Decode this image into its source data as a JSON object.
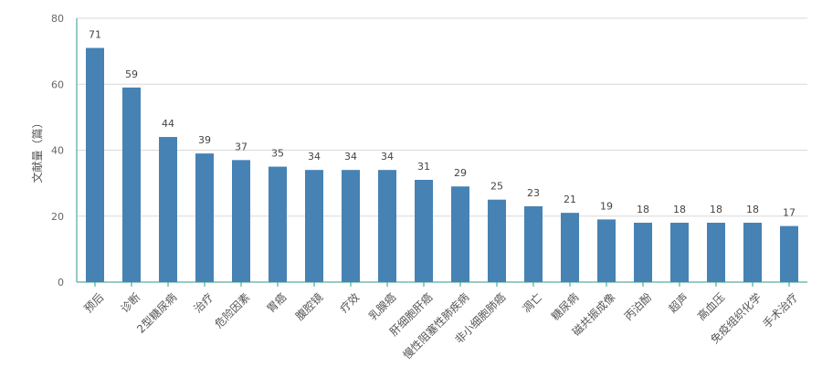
{
  "chart_data": {
    "type": "bar",
    "title": "",
    "xlabel": "",
    "ylabel": "文献量（篇）",
    "ylim": [
      0,
      80
    ],
    "yticks": [
      0,
      20,
      40,
      60,
      80
    ],
    "grid": true,
    "bar_color": "#4682b4",
    "axis_color": "#2e9a8a",
    "categories": [
      "预后",
      "诊断",
      "2型糖尿病",
      "治疗",
      "危险因素",
      "胃癌",
      "腹腔镜",
      "疗效",
      "乳腺癌",
      "肝细胞肝癌",
      "慢性阻塞性肺疾病",
      "非小细胞肺癌",
      "凋亡",
      "糖尿病",
      "磁共振成像",
      "丙泊酚",
      "超声",
      "高血压",
      "免疫组织化学",
      "手术治疗"
    ],
    "values": [
      71,
      59,
      44,
      39,
      37,
      35,
      34,
      34,
      34,
      31,
      29,
      25,
      23,
      21,
      19,
      18,
      18,
      18,
      18,
      17
    ],
    "data_labels": [
      "71",
      "59",
      "44",
      "39",
      "37",
      "35",
      "34",
      "34",
      "34",
      "31",
      "29",
      "25",
      "23",
      "21",
      "19",
      "18",
      "18",
      "18",
      "18",
      "17"
    ]
  }
}
